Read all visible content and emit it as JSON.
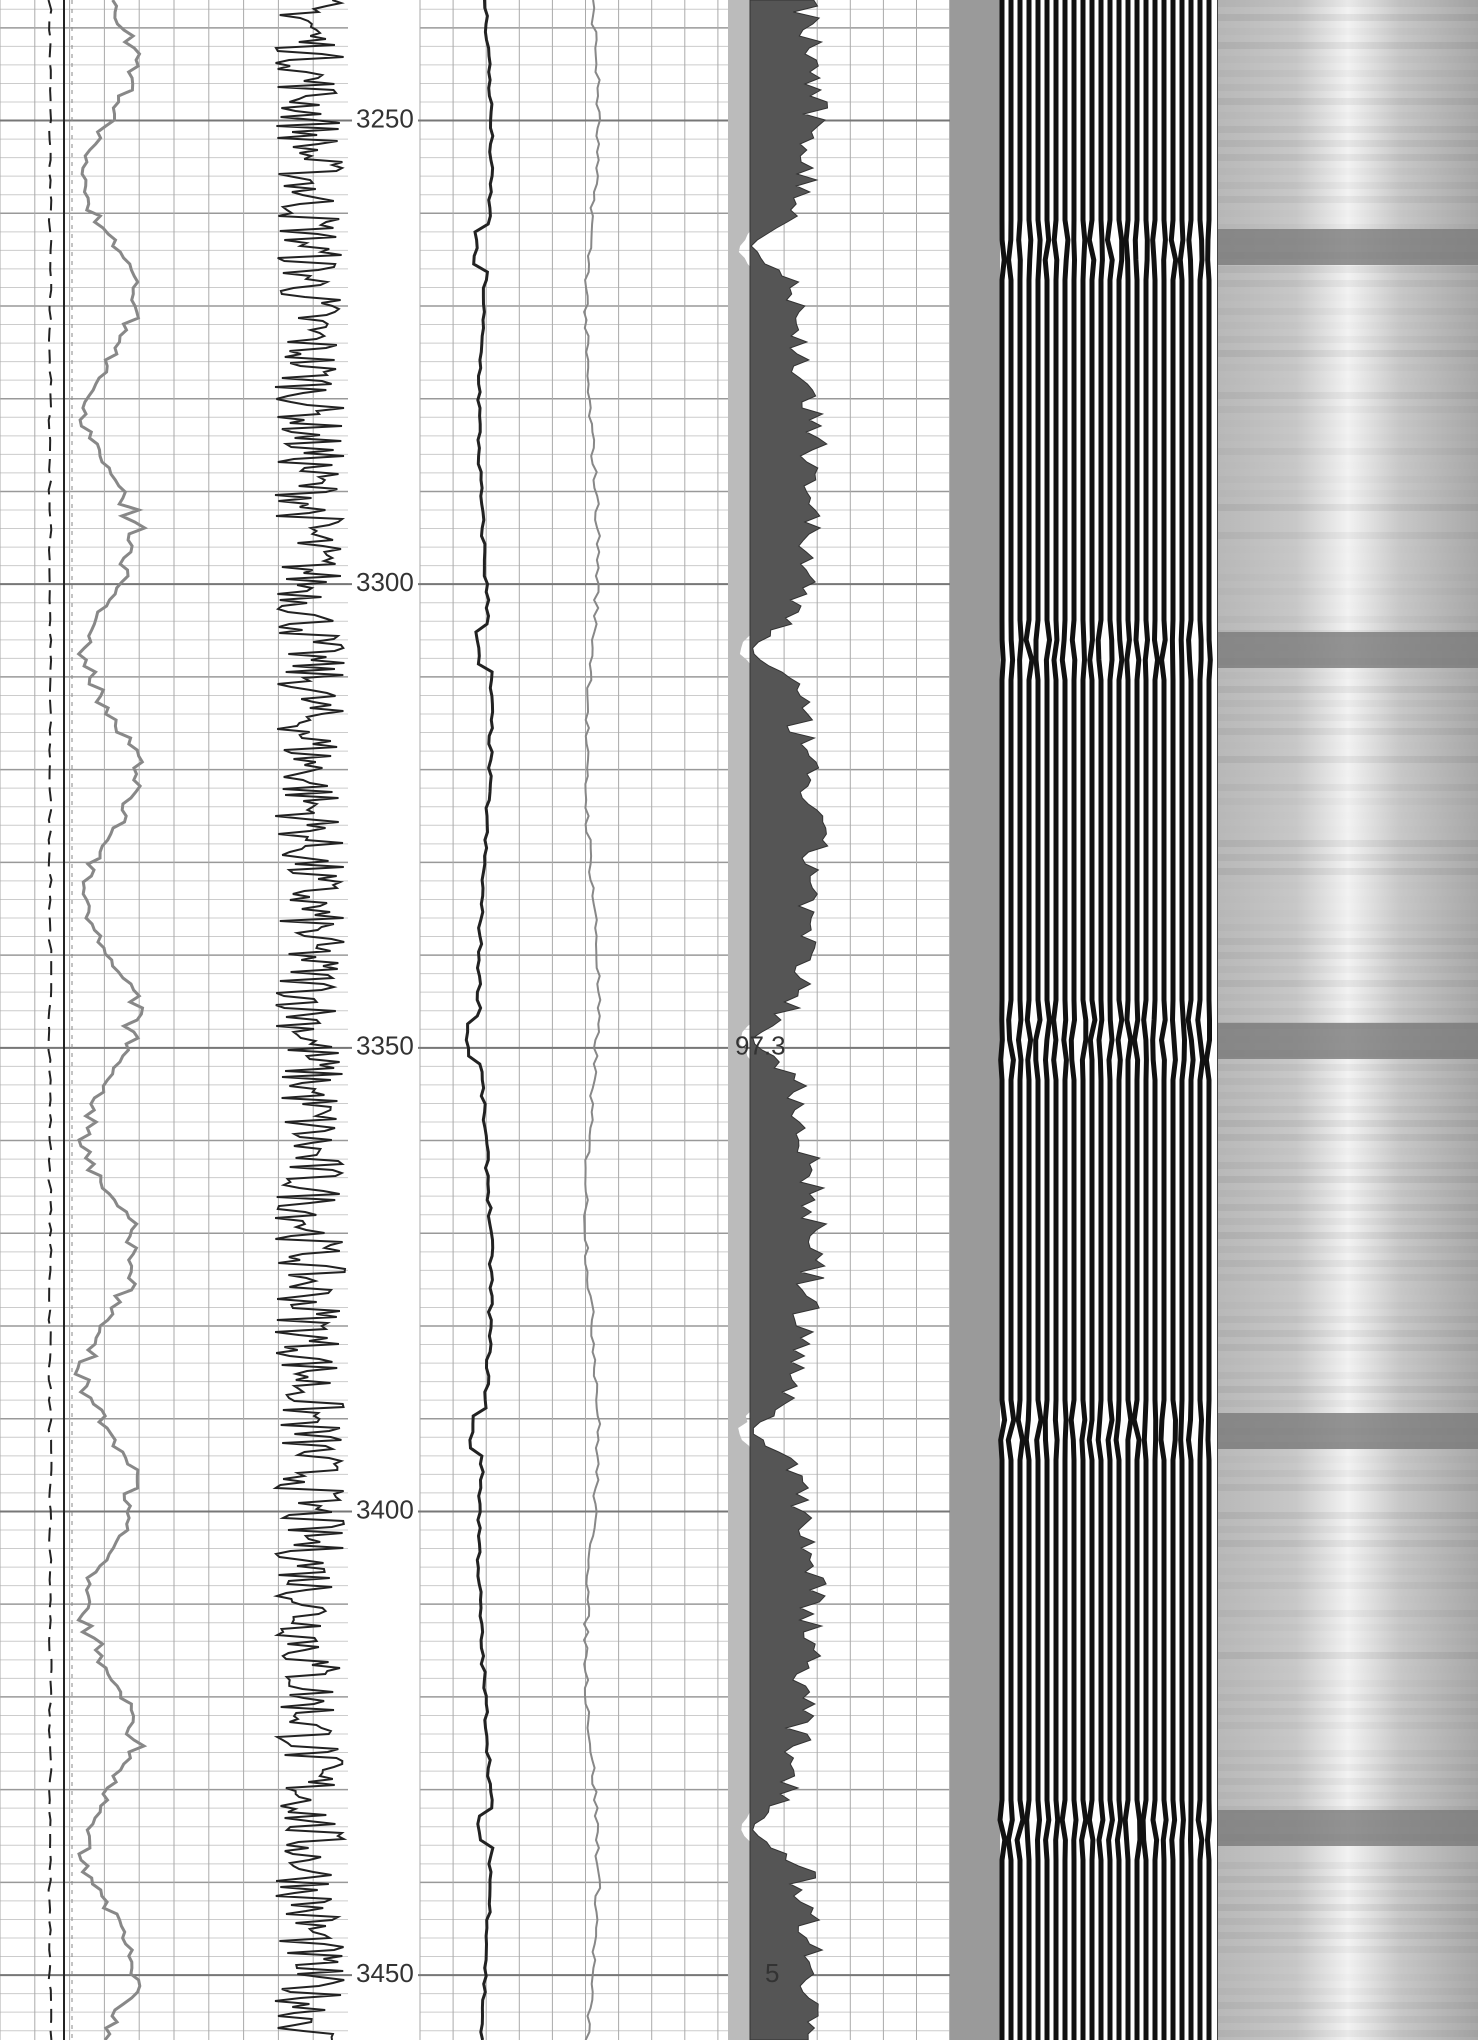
{
  "chart_data": {
    "type": "well-log",
    "ylim": [
      3237,
      3457
    ],
    "yticks": [
      3250,
      3300,
      3350,
      3400,
      3450
    ],
    "annotations": [
      "97.3",
      "5"
    ],
    "grid": true
  }
}
